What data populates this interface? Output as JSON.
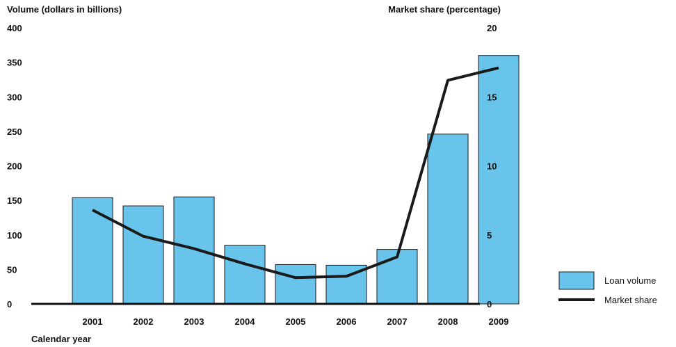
{
  "chart_data": {
    "type": "bar",
    "categories": [
      "2001",
      "2002",
      "2003",
      "2004",
      "2005",
      "2006",
      "2007",
      "2008",
      "2009"
    ],
    "series": [
      {
        "name": "Loan volume",
        "type": "bar",
        "axis": "left",
        "values": [
          154,
          142,
          155,
          85,
          57,
          56,
          79,
          246,
          360
        ]
      },
      {
        "name": "Market share",
        "type": "line",
        "axis": "right",
        "values": [
          6.8,
          4.9,
          4.0,
          2.9,
          1.9,
          2.0,
          3.4,
          16.2,
          17.1
        ]
      }
    ],
    "xlabel": "Calendar year",
    "ylabel": "Volume (dollars in billions)",
    "y2label": "Market share (percentage)",
    "ylim": [
      0,
      400
    ],
    "y2lim": [
      0,
      20
    ],
    "yticks": [
      "0",
      "50",
      "100",
      "150",
      "200",
      "250",
      "300",
      "350",
      "400"
    ],
    "y2ticks": [
      "0",
      "5",
      "10",
      "15",
      "20"
    ],
    "legend_position": "bottom-right",
    "grid": false,
    "colors": {
      "bar_fill": "#69C4EC",
      "bar_stroke": "#1a1a1a",
      "line": "#1a1a1a",
      "axis": "#111111"
    }
  }
}
